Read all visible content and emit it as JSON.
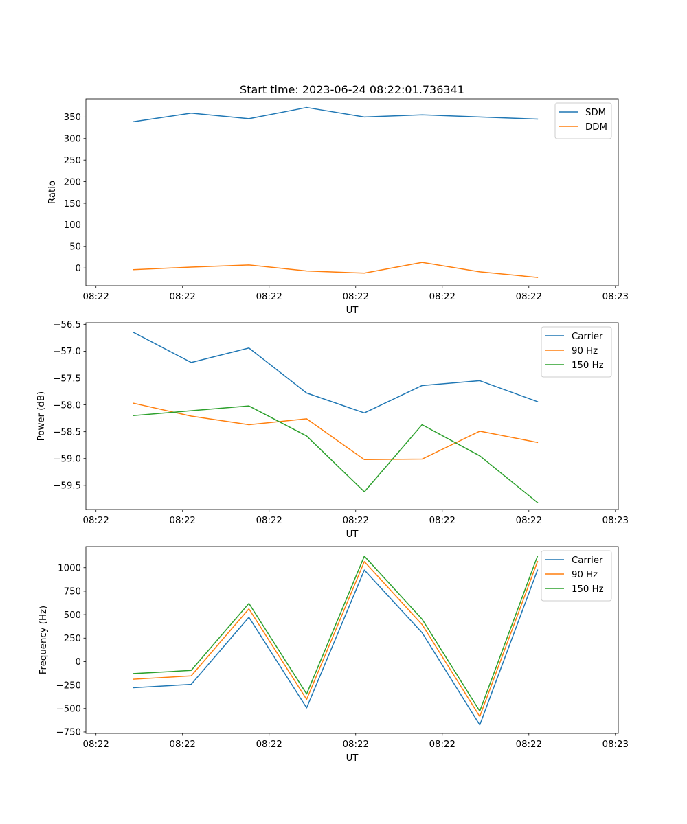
{
  "figure_title": "Start time: 2023-06-24 08:22:01.736341",
  "chart_data": [
    {
      "type": "line",
      "title": "Start time: 2023-06-24 08:22:01.736341",
      "xlabel": "UT",
      "ylabel": "Ratio",
      "x": [
        1,
        2,
        3,
        4,
        5,
        6,
        7,
        8
      ],
      "xlim": [
        0.175,
        9.4
      ],
      "ylim": [
        -41,
        392
      ],
      "xticks": [
        0.35,
        1.85,
        3.35,
        4.85,
        6.35,
        7.85,
        9.35
      ],
      "xtick_labels": [
        "08:22",
        "08:22",
        "08:22",
        "08:22",
        "08:22",
        "08:22",
        "08:23"
      ],
      "yticks": [
        0,
        50,
        100,
        150,
        200,
        250,
        300,
        350
      ],
      "ytick_labels": [
        "0",
        "50",
        "100",
        "150",
        "200",
        "250",
        "300",
        "350"
      ],
      "legend_location": "upper right",
      "series": [
        {
          "name": "SDM",
          "color": "#1f77b4",
          "values": [
            339,
            359,
            346,
            372,
            350,
            355,
            350,
            345
          ]
        },
        {
          "name": "DDM",
          "color": "#ff7f0e",
          "values": [
            -4,
            2,
            7,
            -7,
            -12,
            13,
            -9,
            -22
          ]
        }
      ]
    },
    {
      "type": "line",
      "title": "",
      "xlabel": "UT",
      "ylabel": "Power (dB)",
      "x": [
        1,
        2,
        3,
        4,
        5,
        6,
        7,
        8
      ],
      "xlim": [
        0.175,
        9.4
      ],
      "ylim": [
        -59.95,
        -56.47
      ],
      "xticks": [
        0.35,
        1.85,
        3.35,
        4.85,
        6.35,
        7.85,
        9.35
      ],
      "xtick_labels": [
        "08:22",
        "08:22",
        "08:22",
        "08:22",
        "08:22",
        "08:22",
        "08:23"
      ],
      "yticks": [
        -56.5,
        -57.0,
        -57.5,
        -58.0,
        -58.5,
        -59.0,
        -59.5
      ],
      "ytick_labels": [
        "−56.5",
        "−57.0",
        "−57.5",
        "−58.0",
        "−58.5",
        "−59.0",
        "−59.5"
      ],
      "legend_location": "upper right",
      "series": [
        {
          "name": "Carrier",
          "color": "#1f77b4",
          "values": [
            -56.65,
            -57.21,
            -56.94,
            -57.78,
            -58.15,
            -57.64,
            -57.55,
            -57.94
          ]
        },
        {
          "name": "90 Hz",
          "color": "#ff7f0e",
          "values": [
            -57.97,
            -58.21,
            -58.37,
            -58.26,
            -59.02,
            -59.01,
            -58.49,
            -58.7
          ]
        },
        {
          "name": "150 Hz",
          "color": "#2ca02c",
          "values": [
            -58.2,
            -58.11,
            -58.02,
            -58.58,
            -59.62,
            -58.37,
            -58.95,
            -59.82
          ]
        }
      ]
    },
    {
      "type": "line",
      "title": "",
      "xlabel": "UT",
      "ylabel": "Frequency (Hz)",
      "x": [
        1,
        2,
        3,
        4,
        5,
        6,
        7,
        8
      ],
      "xlim": [
        0.175,
        9.4
      ],
      "ylim": [
        -765,
        1225
      ],
      "xticks": [
        0.35,
        1.85,
        3.35,
        4.85,
        6.35,
        7.85,
        9.35
      ],
      "xtick_labels": [
        "08:22",
        "08:22",
        "08:22",
        "08:22",
        "08:22",
        "08:22",
        "08:23"
      ],
      "yticks": [
        1000,
        750,
        500,
        250,
        0,
        -250,
        -500,
        -750
      ],
      "ytick_labels": [
        "1000",
        "750",
        "500",
        "250",
        "0",
        "−250",
        "−500",
        "−750"
      ],
      "legend_location": "upper right",
      "series": [
        {
          "name": "Carrier",
          "color": "#1f77b4",
          "values": [
            -278,
            -243,
            472,
            -493,
            975,
            308,
            -675,
            975
          ]
        },
        {
          "name": "90 Hz",
          "color": "#ff7f0e",
          "values": [
            -188,
            -152,
            562,
            -403,
            1065,
            395,
            -585,
            1065
          ]
        },
        {
          "name": "150 Hz",
          "color": "#2ca02c",
          "values": [
            -128,
            -94,
            620,
            -345,
            1123,
            452,
            -528,
            1123
          ]
        }
      ]
    }
  ]
}
